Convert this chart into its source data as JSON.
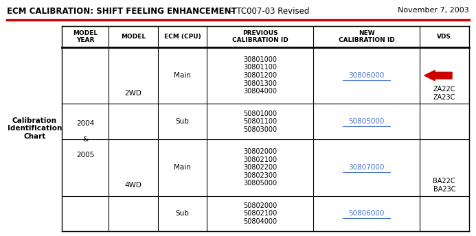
{
  "title_bold": "ECM CALIBRATION: SHIFT FEELING ENHANCEMENT",
  "title_normal": " – TC007-03 Revised",
  "date": "November 7, 2003",
  "header_row": [
    "MODEL\nYEAR",
    "MODEL",
    "ECM (CPU)",
    "PREVIOUS\nCALIBRATION ID",
    "NEW\nCALIBRATION ID",
    "VDS"
  ],
  "left_label": "Calibration\nIdentification\nChart",
  "rows": [
    {
      "ecm": "Main",
      "prev": "30801000\n30801100\n30801200\n30801300\n30804000",
      "new": "30806000",
      "has_arrow": true
    },
    {
      "ecm": "Sub",
      "prev": "50801000\n50801100\n50803000",
      "new": "50805000",
      "has_arrow": false
    },
    {
      "ecm": "Main",
      "prev": "30802000\n30802100\n30802200\n30802300\n30805000",
      "new": "30807000",
      "has_arrow": false
    },
    {
      "ecm": "Sub",
      "prev": "50802000\n50802100\n50804000",
      "new": "50806000",
      "has_arrow": false
    }
  ],
  "title_color": "#000000",
  "link_color": "#4472C4",
  "arrow_color": "#CC0000",
  "bg_color": "#FFFFFF",
  "red_line_color": "#CC0000"
}
